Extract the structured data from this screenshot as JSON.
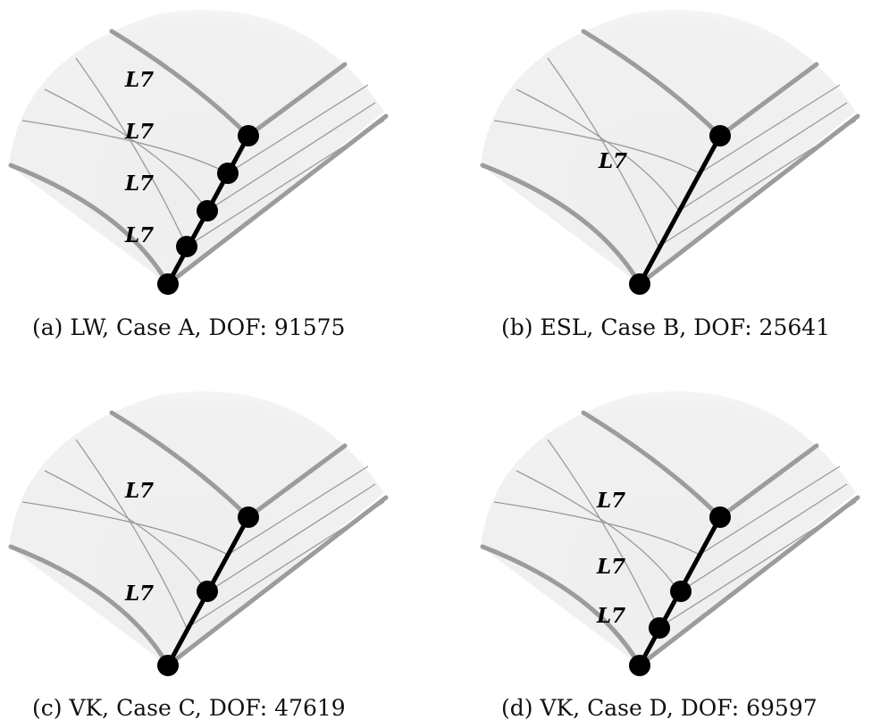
{
  "panels": [
    {
      "id": "a",
      "caption": "(a) LW, Case A, DOF: 91575",
      "labels": [
        "L7",
        "L7",
        "L7",
        "L7"
      ],
      "node_positions": [
        0,
        0.27,
        0.52,
        0.75,
        1
      ]
    },
    {
      "id": "b",
      "caption": "(b) ESL, Case B, DOF: 25641",
      "labels": [
        "L7"
      ],
      "node_positions": [
        0,
        1
      ]
    },
    {
      "id": "c",
      "caption": "(c) VK, Case C, DOF: 47619",
      "labels": [
        "L7",
        "L7"
      ],
      "node_positions": [
        0,
        0.52,
        1
      ]
    },
    {
      "id": "d",
      "caption": "(d) VK, Case D, DOF: 69597",
      "labels": [
        "L7",
        "L7",
        "L7"
      ],
      "node_positions": [
        0,
        0.27,
        0.52,
        1
      ]
    }
  ],
  "colors": {
    "fan_fill": "#efefef",
    "thick_line": "#9c9c9c",
    "thin_line": "#9a9a9a",
    "node": "#000000"
  }
}
